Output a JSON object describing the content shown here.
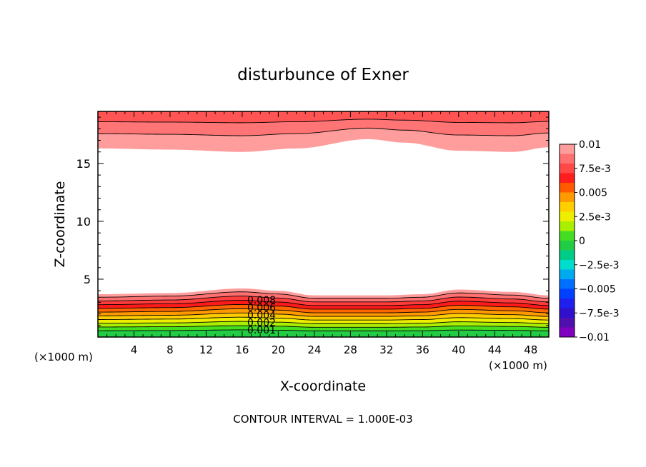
{
  "chart_data": {
    "type": "heatmap",
    "title": "disturbunce of Exner",
    "xlabel": "X-coordinate",
    "ylabel": "Z-coordinate",
    "x_unit_left": "(×1000 m)",
    "x_unit_right": "(×1000 m)",
    "xlim": [
      0,
      50
    ],
    "ylim": [
      0,
      19.5
    ],
    "xticks": [
      4,
      8,
      12,
      16,
      20,
      24,
      28,
      32,
      36,
      40,
      44,
      48
    ],
    "yticks": [
      5,
      10,
      15
    ],
    "footer": "CONTOUR INTERVAL = 1.000E-03",
    "colorbar": {
      "labels": [
        "0.01",
        "7.5e-3",
        "0.005",
        "2.5e-3",
        "0",
        "−2.5e-3",
        "−0.005",
        "−7.5e-3",
        "−0.01"
      ],
      "levels_from_top": [
        0.0095,
        0.0085,
        0.0075,
        0.0065,
        0.0055,
        0.0045,
        0.0035,
        0.0025,
        0.0015,
        0.0005,
        -0.0005,
        -0.0015,
        -0.0025,
        -0.0035,
        -0.0045,
        -0.0055,
        -0.0065,
        -0.0075,
        -0.0085,
        -0.0095
      ],
      "colors_from_top": [
        "#ff9c9c",
        "#ff7070",
        "#ff4848",
        "#ff1e1e",
        "#ff5a00",
        "#ff9a00",
        "#ffcf00",
        "#eeee00",
        "#aaee00",
        "#44dd22",
        "#22cc44",
        "#00cc88",
        "#00ddcc",
        "#00aaee",
        "#0070ff",
        "#0040ff",
        "#2020ee",
        "#3010cc",
        "#5010b0",
        "#8000c0"
      ]
    },
    "contour_labels": [
      "0.008",
      "0.006",
      "0.004",
      "0.002",
      "0.001"
    ],
    "top_layer": {
      "base_height_z": [
        16.3,
        16.2,
        16.0,
        16.3,
        17.1,
        16.8,
        16.1,
        16.0,
        16.4
      ],
      "base_height_x": [
        0,
        8,
        16,
        22,
        30,
        34,
        40,
        46,
        50
      ],
      "band_colors": [
        "#ff9c9c",
        "#ff7474",
        "#ff5454"
      ]
    },
    "bottom_layer": {
      "top_height_z": [
        3.7,
        3.8,
        4.2,
        4.0,
        3.6,
        3.6,
        3.7,
        4.1,
        3.9,
        3.6
      ],
      "top_height_x": [
        0,
        8,
        16,
        20,
        24,
        32,
        36,
        40,
        46,
        50
      ],
      "band_colors": [
        "#ff9c9c",
        "#ff7070",
        "#ff3c3c",
        "#ff1a1a",
        "#ff6600",
        "#ff9900",
        "#ffcc00",
        "#eeee00",
        "#aaee00",
        "#44dd22",
        "#22cc44"
      ]
    }
  }
}
